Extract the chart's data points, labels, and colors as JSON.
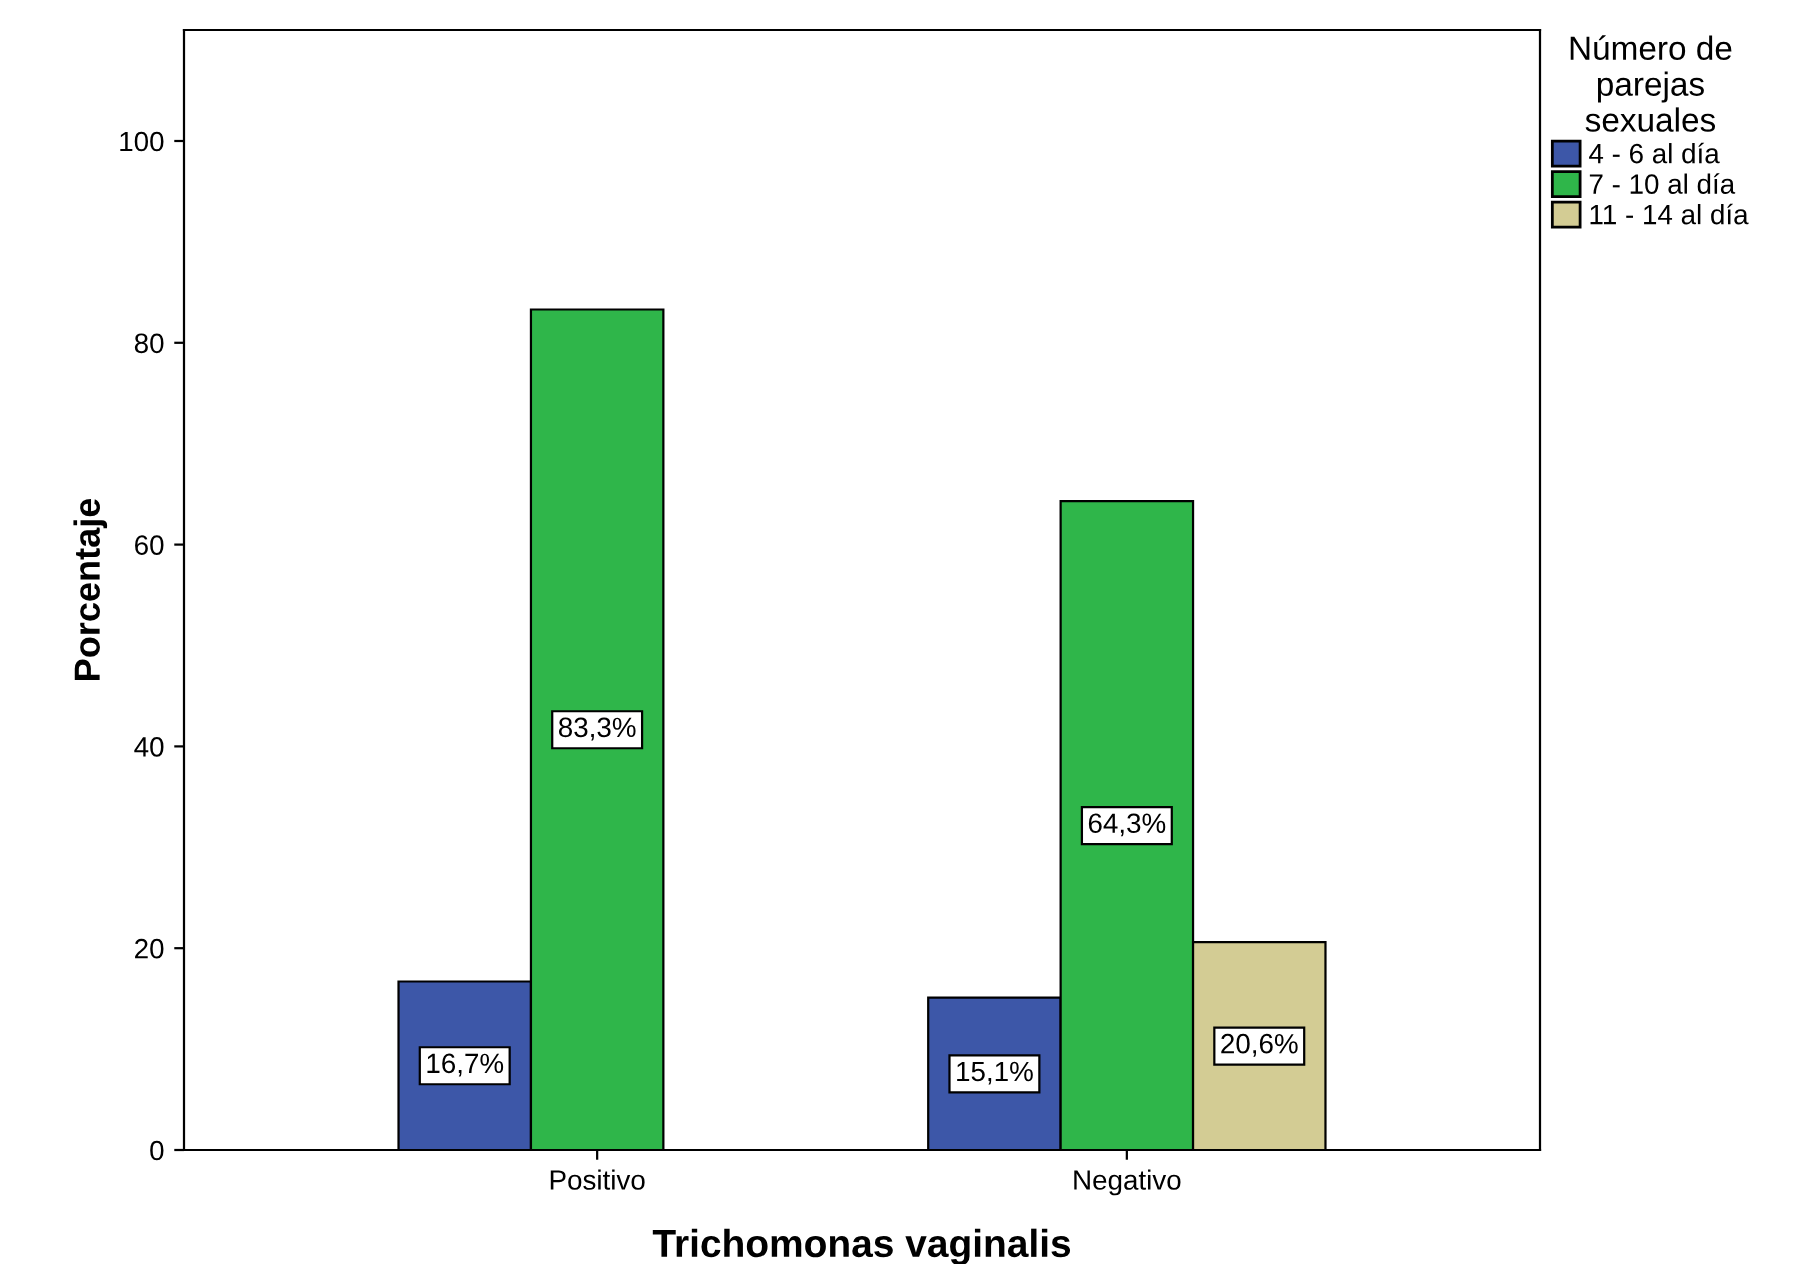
{
  "chart_data": {
    "type": "bar",
    "xlabel": "Trichomonas vaginalis",
    "ylabel": "Porcentaje",
    "legend_title": "Número de\nparejas\nsexuales",
    "categories": [
      "Positivo",
      "Negativo"
    ],
    "series": [
      {
        "name": "4 - 6 al día",
        "color": "#3d57a8",
        "values": [
          16.7,
          15.1
        ],
        "value_labels": [
          "16,7%",
          "15,1%"
        ]
      },
      {
        "name": "7 - 10 al día",
        "color": "#2fb64a",
        "values": [
          83.3,
          64.3
        ],
        "value_labels": [
          "83,3%",
          "64,3%"
        ]
      },
      {
        "name": "11 - 14 al día",
        "color": "#d3cc94",
        "values": [
          null,
          20.6
        ],
        "value_labels": [
          null,
          "20,6%"
        ]
      }
    ],
    "ylim": [
      0,
      111
    ],
    "yticks": [
      0,
      20,
      40,
      60,
      80,
      100
    ],
    "grid": false,
    "legend": "top right"
  }
}
